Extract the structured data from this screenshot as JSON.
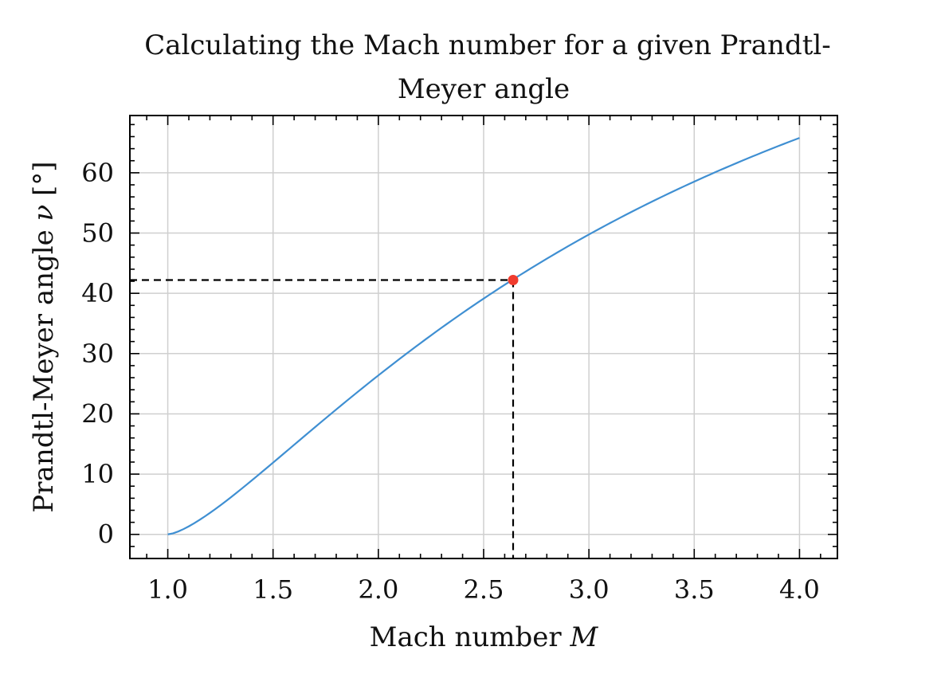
{
  "chart_data": {
    "type": "line",
    "title_line1": "Calculating the Mach number for a given Prandtl-",
    "title_line2": "Meyer angle",
    "xlabel_text": "Mach number ",
    "xlabel_var": "M",
    "ylabel_text": "Prandtl-Meyer angle ",
    "ylabel_var": "ν",
    "ylabel_unit": " [°]",
    "xlim": [
      0.82,
      4.18
    ],
    "ylim": [
      -4,
      69.5
    ],
    "xticks": [
      1.0,
      1.5,
      2.0,
      2.5,
      3.0,
      3.5,
      4.0
    ],
    "xtick_labels": [
      "1.0",
      "1.5",
      "2.0",
      "2.5",
      "3.0",
      "3.5",
      "4.0"
    ],
    "yticks": [
      0,
      10,
      20,
      30,
      40,
      50,
      60
    ],
    "ytick_labels": [
      "0",
      "10",
      "20",
      "30",
      "40",
      "50",
      "60"
    ],
    "grid": true,
    "gamma": 1.4,
    "series": [
      {
        "color": "#3f8fd2",
        "x_range": [
          1.0,
          4.0
        ],
        "samples": 120
      }
    ],
    "marked_point": {
      "x": 2.64,
      "y": 42.2,
      "color": "#f03c2e"
    },
    "guide_color": "#000000"
  }
}
